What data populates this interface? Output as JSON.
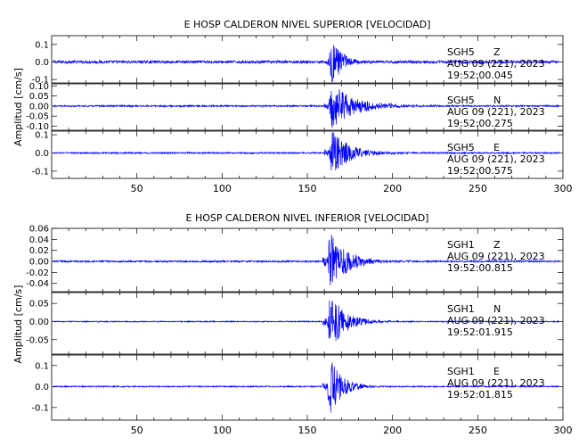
{
  "chart_data": [
    {
      "type": "line",
      "title": "E HOSP CALDERON NIVEL SUPERIOR [VELOCIDAD]",
      "ylabel": "Amplitud [cm/s]",
      "xlabel": "",
      "xlim": [
        0,
        300
      ],
      "x_ticks": [
        50,
        100,
        150,
        200,
        250,
        300
      ],
      "grid": false,
      "series_color": "#0000ff",
      "traces": [
        {
          "station": "SGH5",
          "component": "Z",
          "date": "AUG 09 (221), 2023",
          "time": "19:52:00.045",
          "ylim": [
            -0.12,
            0.15
          ],
          "y_ticks": [
            -0.1,
            0.0,
            0.1
          ],
          "y_tick_labels": [
            "-0.1",
            "0.0",
            "0.1"
          ],
          "onset": 163,
          "peak": 0.14,
          "decay": 6,
          "noise": 0.008
        },
        {
          "station": "SGH5",
          "component": "N",
          "date": "AUG 09 (221), 2023",
          "time": "19:52:00.275",
          "ylim": [
            -0.12,
            0.11
          ],
          "y_ticks": [
            -0.1,
            -0.05,
            0.0,
            0.05,
            0.1
          ],
          "y_tick_labels": [
            "-0.10",
            "-0.05",
            "0.00",
            "0.05",
            "0.10"
          ],
          "onset": 163,
          "peak": 0.11,
          "decay": 14,
          "noise": 0.004
        },
        {
          "station": "SGH5",
          "component": "E",
          "date": "AUG 09 (221), 2023",
          "time": "19:52:00.575",
          "ylim": [
            -0.14,
            0.12
          ],
          "y_ticks": [
            -0.1,
            0.0,
            0.1
          ],
          "y_tick_labels": [
            "-0.1",
            "0.0",
            "0.1"
          ],
          "onset": 163,
          "peak": 0.12,
          "decay": 11,
          "noise": 0.004
        }
      ]
    },
    {
      "type": "line",
      "title": "E HOSP CALDERON NIVEL INFERIOR [VELOCIDAD]",
      "ylabel": "Amplitud [cm/s]",
      "xlabel": "",
      "xlim": [
        0,
        300
      ],
      "x_ticks": [
        50,
        100,
        150,
        200,
        250,
        300
      ],
      "grid": false,
      "series_color": "#0000ff",
      "traces": [
        {
          "station": "SGH1",
          "component": "Z",
          "date": "AUG 09 (221), 2023",
          "time": "19:52:00.815",
          "ylim": [
            -0.055,
            0.06
          ],
          "y_ticks": [
            -0.04,
            -0.02,
            0.0,
            0.02,
            0.04,
            0.06
          ],
          "y_tick_labels": [
            "-0.04",
            "-0.02",
            "0.00",
            "0.02",
            "0.04",
            "0.06"
          ],
          "onset": 162,
          "peak": 0.055,
          "decay": 10,
          "noise": 0.0015
        },
        {
          "station": "SGH1",
          "component": "N",
          "date": "AUG 09 (221), 2023",
          "time": "19:52:01.915",
          "ylim": [
            -0.09,
            0.08
          ],
          "y_ticks": [
            -0.05,
            0.0,
            0.05
          ],
          "y_tick_labels": [
            "-0.05",
            "0.00",
            "0.05"
          ],
          "onset": 162,
          "peak": 0.08,
          "decay": 9,
          "noise": 0.0015
        },
        {
          "station": "SGH1",
          "component": "E",
          "date": "AUG 09 (221), 2023",
          "time": "19:52:01.815",
          "ylim": [
            -0.16,
            0.15
          ],
          "y_ticks": [
            -0.1,
            0.0,
            0.1
          ],
          "y_tick_labels": [
            "-0.1",
            "0.0",
            "0.1"
          ],
          "onset": 162,
          "peak": 0.14,
          "decay": 7,
          "noise": 0.003
        }
      ]
    }
  ]
}
